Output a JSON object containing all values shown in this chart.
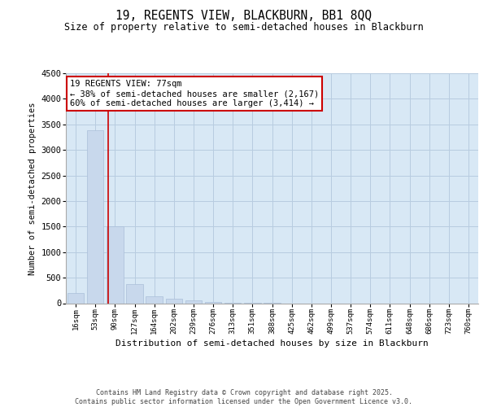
{
  "title1": "19, REGENTS VIEW, BLACKBURN, BB1 8QQ",
  "title2": "Size of property relative to semi-detached houses in Blackburn",
  "xlabel": "Distribution of semi-detached houses by size in Blackburn",
  "ylabel": "Number of semi-detached properties",
  "footer1": "Contains HM Land Registry data © Crown copyright and database right 2025.",
  "footer2": "Contains public sector information licensed under the Open Government Licence v3.0.",
  "categories": [
    "16sqm",
    "53sqm",
    "90sqm",
    "127sqm",
    "164sqm",
    "202sqm",
    "239sqm",
    "276sqm",
    "313sqm",
    "351sqm",
    "388sqm",
    "425sqm",
    "462sqm",
    "499sqm",
    "537sqm",
    "574sqm",
    "611sqm",
    "648sqm",
    "686sqm",
    "723sqm",
    "760sqm"
  ],
  "values": [
    200,
    3380,
    1500,
    370,
    140,
    80,
    55,
    30,
    10,
    5,
    2,
    0,
    0,
    0,
    0,
    0,
    0,
    0,
    0,
    0,
    0
  ],
  "bar_color": "#c8d8ec",
  "bar_edge_color": "#aabfd8",
  "grid_color": "#b8cce0",
  "background_color": "#d8e8f5",
  "vline_color": "#cc0000",
  "annotation_text": "19 REGENTS VIEW: 77sqm\n← 38% of semi-detached houses are smaller (2,167)\n60% of semi-detached houses are larger (3,414) →",
  "annotation_box_color": "#ffffff",
  "annotation_box_edge": "#cc0000",
  "ylim": [
    0,
    4500
  ],
  "yticks": [
    0,
    500,
    1000,
    1500,
    2000,
    2500,
    3000,
    3500,
    4000,
    4500
  ]
}
